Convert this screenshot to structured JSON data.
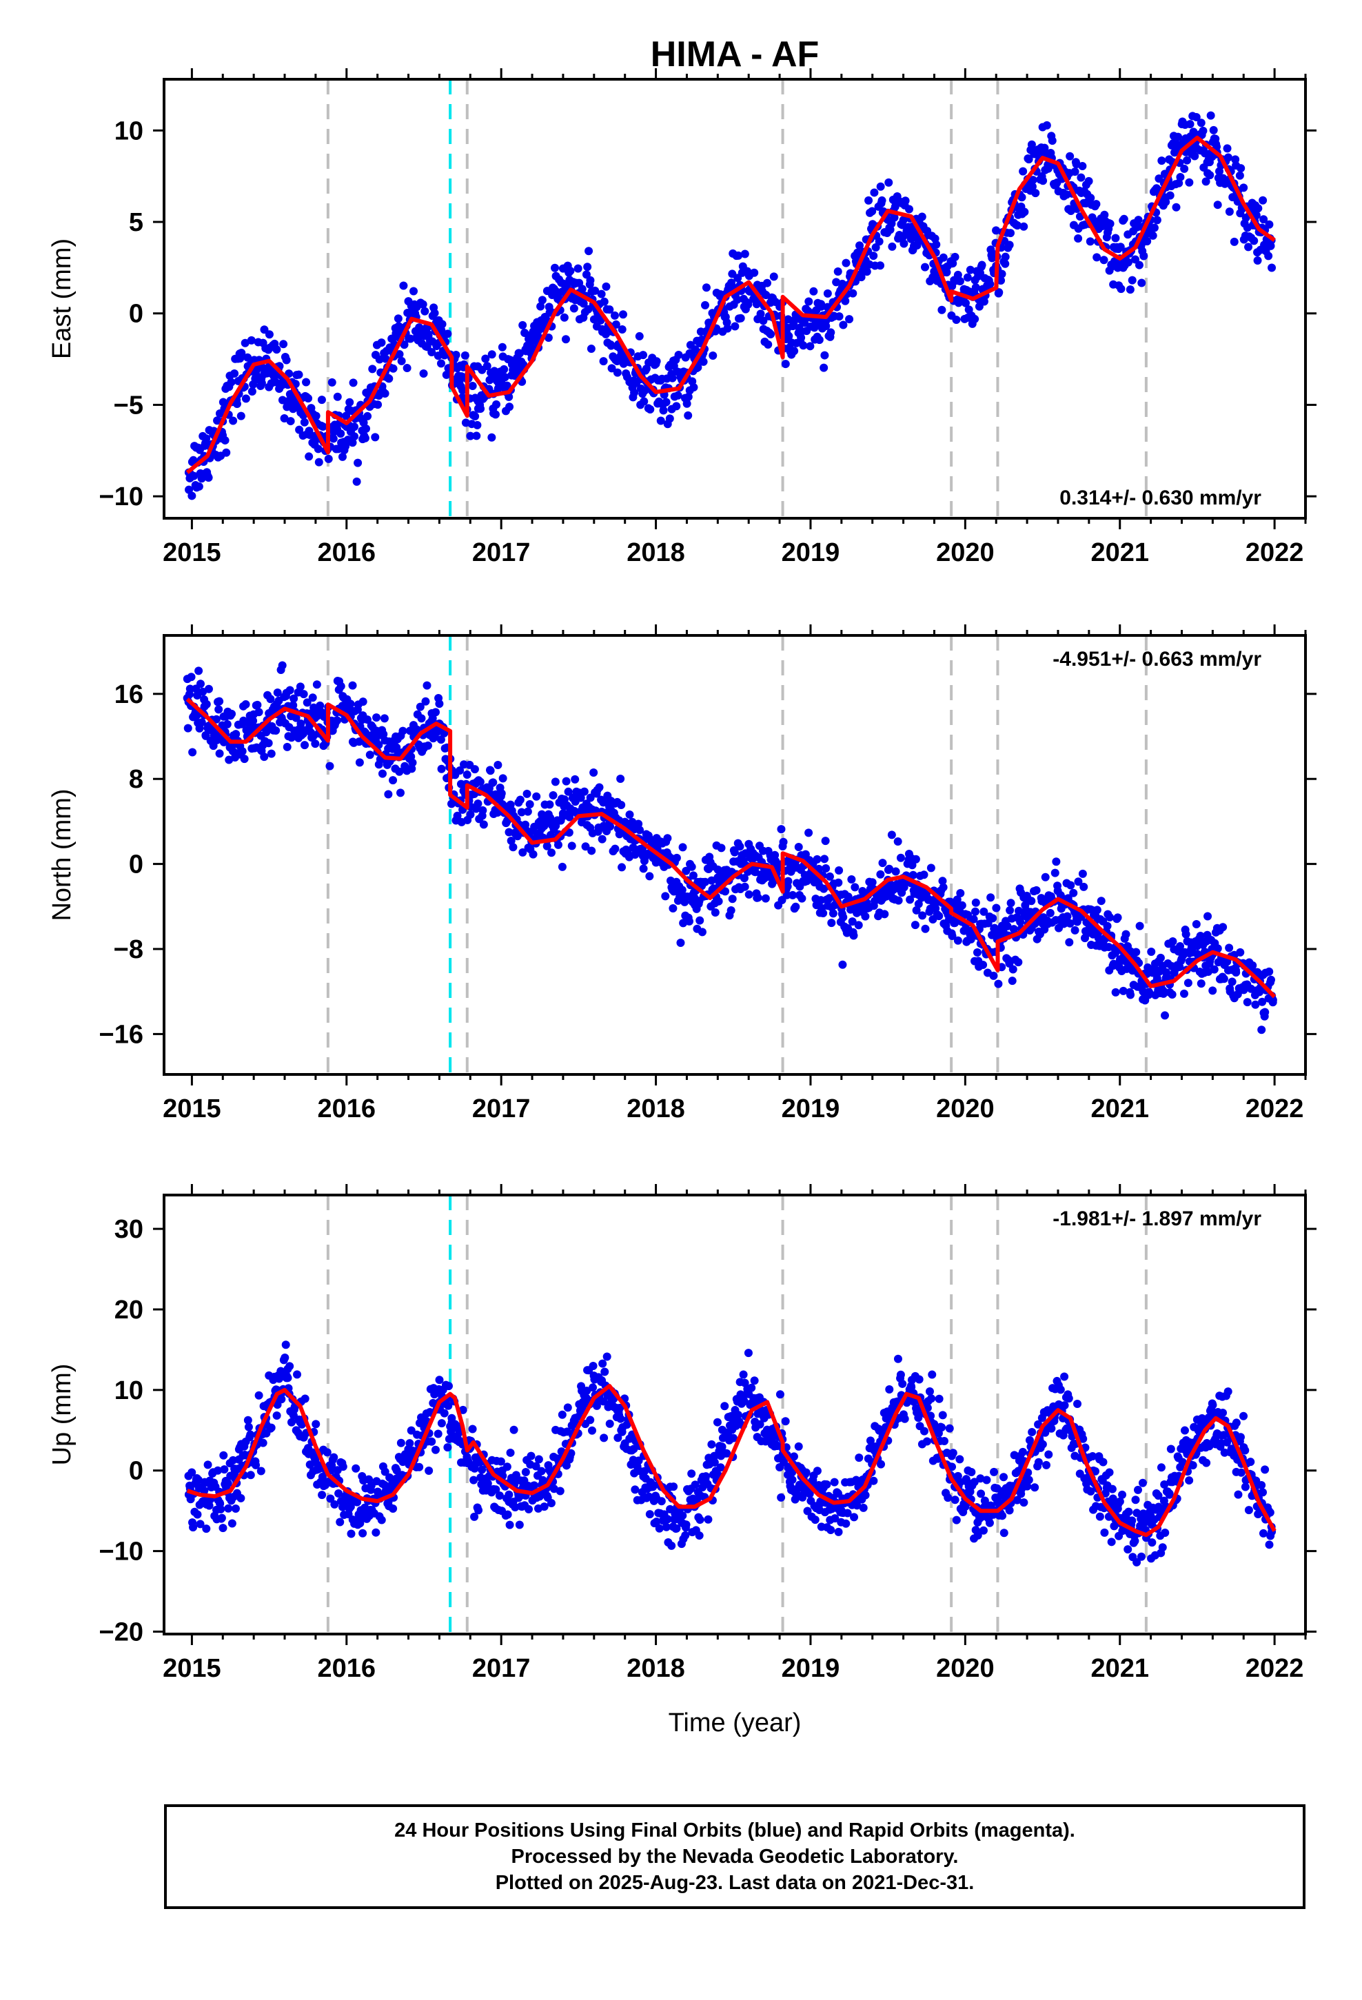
{
  "title": "HIMA - AF",
  "chart_data": [
    {
      "type": "scatter",
      "ylabel": "East (mm)",
      "xlabel": "",
      "xlim": [
        2014.82,
        2022.2
      ],
      "ylim": [
        -11.2,
        12.8
      ],
      "x_ticks": [
        2015,
        2016,
        2017,
        2018,
        2019,
        2020,
        2021,
        2022
      ],
      "y_ticks": [
        -10,
        -5,
        0,
        5,
        10
      ],
      "y_tick_labels": [
        "−10",
        "−5",
        "0",
        "5",
        "10"
      ],
      "rate_text": "0.314+/- 0.630 mm/yr",
      "rate_position": "bottom-right",
      "series": [
        {
          "kind": "points",
          "color": "#0000ee",
          "x": [
            2014.98,
            2015.08,
            2015.2,
            2015.3,
            2015.42,
            2015.5,
            2015.62,
            2015.72,
            2015.85,
            2015.92,
            2016.05,
            2016.15,
            2016.25,
            2016.35,
            2016.45,
            2016.6,
            2016.75,
            2016.85,
            2016.95,
            2017.1,
            2017.25,
            2017.4,
            2017.5,
            2017.62,
            2017.75,
            2017.9,
            2018.05,
            2018.2,
            2018.35,
            2018.45,
            2018.55,
            2018.7,
            2018.85,
            2019.0,
            2019.1,
            2019.25,
            2019.4,
            2019.5,
            2019.6,
            2019.75,
            2019.9,
            2020.05,
            2020.2,
            2020.35,
            2020.45,
            2020.55,
            2020.7,
            2020.85,
            2021.0,
            2021.15,
            2021.3,
            2021.4,
            2021.5,
            2021.62,
            2021.75,
            2021.88,
            2021.98
          ],
          "y": [
            -8.7,
            -7.8,
            -5.9,
            -3.7,
            -2.7,
            -2.9,
            -3.9,
            -5.3,
            -6.8,
            -6.3,
            -6.2,
            -5.1,
            -3.2,
            -1.2,
            -0.2,
            -1.6,
            -4.2,
            -4.8,
            -4.4,
            -3.0,
            -0.6,
            1.2,
            1.1,
            0.2,
            -1.8,
            -3.6,
            -4.3,
            -3.5,
            -1.1,
            0.9,
            1.4,
            0.4,
            -1.3,
            -0.2,
            -0.4,
            1.5,
            4.5,
            5.5,
            5.1,
            3.3,
            1.1,
            0.9,
            2.6,
            5.8,
            7.9,
            8.3,
            6.9,
            4.8,
            3.0,
            3.9,
            6.9,
            8.9,
            9.5,
            8.7,
            6.8,
            4.8,
            4.0
          ]
        },
        {
          "kind": "fit",
          "color": "#ff0000",
          "x": [
            2014.97,
            2015.1,
            2015.25,
            2015.4,
            2015.5,
            2015.62,
            2015.75,
            2015.88,
            2015.88,
            2016.0,
            2016.15,
            2016.3,
            2016.42,
            2016.55,
            2016.68,
            2016.68,
            2016.78,
            2016.78,
            2016.92,
            2017.05,
            2017.2,
            2017.35,
            2017.45,
            2017.6,
            2017.75,
            2017.9,
            2018.0,
            2018.15,
            2018.3,
            2018.45,
            2018.6,
            2018.75,
            2018.82,
            2018.82,
            2018.95,
            2019.1,
            2019.25,
            2019.4,
            2019.5,
            2019.65,
            2019.8,
            2019.91,
            2019.91,
            2020.05,
            2020.2,
            2020.21,
            2020.35,
            2020.5,
            2020.6,
            2020.75,
            2020.9,
            2021.0,
            2021.1,
            2021.25,
            2021.4,
            2021.5,
            2021.65,
            2021.8,
            2021.9,
            2022.0
          ],
          "y": [
            -8.7,
            -7.8,
            -4.9,
            -2.8,
            -2.6,
            -3.6,
            -5.5,
            -7.6,
            -5.4,
            -6.0,
            -4.8,
            -2.3,
            -0.3,
            -0.6,
            -2.4,
            -4.0,
            -5.6,
            -2.9,
            -4.5,
            -4.3,
            -2.6,
            0.1,
            1.3,
            0.6,
            -1.2,
            -3.4,
            -4.3,
            -4.1,
            -2.0,
            0.9,
            1.7,
            0.0,
            -2.4,
            0.9,
            -0.1,
            -0.2,
            1.5,
            4.3,
            5.6,
            5.3,
            3.1,
            0.7,
            1.2,
            0.8,
            1.4,
            3.7,
            6.8,
            8.5,
            8.2,
            5.7,
            3.5,
            3.0,
            3.6,
            6.3,
            8.9,
            9.6,
            8.6,
            6.0,
            4.6,
            4.0
          ]
        }
      ],
      "offset_lines": [
        2015.88,
        2016.78,
        2018.82,
        2019.91,
        2020.21,
        2021.17
      ],
      "antenna_lines": [
        2016.67
      ]
    },
    {
      "type": "scatter",
      "ylabel": "North (mm)",
      "xlabel": "",
      "xlim": [
        2014.82,
        2022.2
      ],
      "ylim": [
        -19.8,
        21.5
      ],
      "x_ticks": [
        2015,
        2016,
        2017,
        2018,
        2019,
        2020,
        2021,
        2022
      ],
      "y_ticks": [
        -16,
        -8,
        0,
        8,
        16
      ],
      "y_tick_labels": [
        "−16",
        "−8",
        "0",
        "8",
        "16"
      ],
      "rate_text": "-4.951+/- 0.663 mm/yr",
      "rate_position": "top-right",
      "series": [
        {
          "kind": "points",
          "color": "#0000ee",
          "x": [
            2014.97,
            2015.08,
            2015.2,
            2015.3,
            2015.42,
            2015.55,
            2015.65,
            2015.75,
            2015.85,
            2015.95,
            2016.05,
            2016.15,
            2016.3,
            2016.42,
            2016.5,
            2016.6,
            2016.7,
            2016.8,
            2016.95,
            2017.1,
            2017.25,
            2017.4,
            2017.55,
            2017.7,
            2017.85,
            2018.0,
            2018.15,
            2018.25,
            2018.4,
            2018.55,
            2018.65,
            2018.78,
            2018.9,
            2019.05,
            2019.2,
            2019.35,
            2019.5,
            2019.65,
            2019.8,
            2019.95,
            2020.1,
            2020.25,
            2020.4,
            2020.55,
            2020.7,
            2020.85,
            2021.0,
            2021.15,
            2021.3,
            2021.45,
            2021.6,
            2021.75,
            2021.9,
            2021.99
          ],
          "y": [
            15.6,
            14.0,
            12.0,
            11.3,
            12.8,
            14.5,
            14.8,
            13.5,
            12.0,
            14.6,
            13.2,
            11.8,
            10.0,
            10.8,
            12.8,
            13.2,
            6.0,
            6.5,
            6.5,
            3.9,
            2.3,
            4.5,
            4.8,
            3.8,
            2.3,
            1.2,
            -2.1,
            -3.2,
            -1.5,
            0.0,
            -0.2,
            -0.9,
            0.0,
            -1.4,
            -4.2,
            -3.5,
            -1.5,
            -1.8,
            -3.5,
            -4.8,
            -7.5,
            -7.0,
            -5.0,
            -3.4,
            -4.2,
            -6.3,
            -8.0,
            -12.0,
            -10.2,
            -8.4,
            -8.5,
            -10.0,
            -11.8,
            -12.8
          ]
        },
        {
          "kind": "fit",
          "color": "#ff0000",
          "x": [
            2014.97,
            2015.1,
            2015.25,
            2015.35,
            2015.5,
            2015.6,
            2015.75,
            2015.88,
            2015.88,
            2016.0,
            2016.1,
            2016.25,
            2016.35,
            2016.48,
            2016.58,
            2016.67,
            2016.67,
            2016.78,
            2016.78,
            2016.9,
            2017.05,
            2017.2,
            2017.35,
            2017.5,
            2017.65,
            2017.8,
            2017.95,
            2018.1,
            2018.2,
            2018.35,
            2018.5,
            2018.62,
            2018.75,
            2018.82,
            2018.82,
            2018.95,
            2019.1,
            2019.2,
            2019.35,
            2019.5,
            2019.6,
            2019.75,
            2019.91,
            2019.91,
            2020.05,
            2020.21,
            2020.21,
            2020.35,
            2020.5,
            2020.6,
            2020.75,
            2020.9,
            2021.0,
            2021.1,
            2021.2,
            2021.35,
            2021.5,
            2021.6,
            2021.75,
            2021.9,
            2022.0
          ],
          "y": [
            15.5,
            13.8,
            11.5,
            11.5,
            13.6,
            14.6,
            13.9,
            11.6,
            15.0,
            14.0,
            12.0,
            10.0,
            9.9,
            12.3,
            13.2,
            12.5,
            6.5,
            5.3,
            7.4,
            6.5,
            4.5,
            2.0,
            2.3,
            4.5,
            4.7,
            3.3,
            1.6,
            0.0,
            -1.5,
            -3.2,
            -1.2,
            0.0,
            -0.3,
            -2.6,
            1.0,
            0.3,
            -1.7,
            -4.0,
            -3.3,
            -1.5,
            -1.2,
            -2.2,
            -4.2,
            -4.6,
            -5.8,
            -10.0,
            -7.3,
            -6.5,
            -4.3,
            -3.3,
            -4.4,
            -6.5,
            -7.8,
            -9.5,
            -11.5,
            -11.0,
            -9.1,
            -8.3,
            -9.0,
            -11.0,
            -12.5
          ]
        }
      ],
      "offset_lines": [
        2015.88,
        2016.78,
        2018.82,
        2019.91,
        2020.21,
        2021.17
      ],
      "antenna_lines": [
        2016.67
      ]
    },
    {
      "type": "scatter",
      "ylabel": "Up (mm)",
      "xlabel": "Time (year)",
      "xlim": [
        2014.82,
        2022.2
      ],
      "ylim": [
        -20.3,
        34.2
      ],
      "x_ticks": [
        2015,
        2016,
        2017,
        2018,
        2019,
        2020,
        2021,
        2022
      ],
      "y_ticks": [
        -20,
        -10,
        0,
        10,
        20,
        30
      ],
      "y_tick_labels": [
        "−20",
        "−10",
        "0",
        "10",
        "20",
        "30"
      ],
      "rate_text": "-1.981+/- 1.897 mm/yr",
      "rate_position": "top-right",
      "series": [
        {
          "kind": "points",
          "color": "#0000ee",
          "x": [
            2014.98,
            2015.08,
            2015.18,
            2015.28,
            2015.38,
            2015.48,
            2015.55,
            2015.62,
            2015.7,
            2015.8,
            2015.9,
            2016.0,
            2016.1,
            2016.2,
            2016.3,
            2016.42,
            2016.52,
            2016.6,
            2016.68,
            2016.78,
            2016.9,
            2017.05,
            2017.2,
            2017.32,
            2017.45,
            2017.55,
            2017.65,
            2017.75,
            2017.88,
            2018.0,
            2018.12,
            2018.25,
            2018.38,
            2018.5,
            2018.6,
            2018.7,
            2018.82,
            2018.95,
            2019.1,
            2019.2,
            2019.32,
            2019.45,
            2019.55,
            2019.65,
            2019.78,
            2019.9,
            2020.0,
            2020.12,
            2020.22,
            2020.35,
            2020.48,
            2020.58,
            2020.68,
            2020.8,
            2020.95,
            2021.05,
            2021.2,
            2021.32,
            2021.45,
            2021.55,
            2021.65,
            2021.75,
            2021.88,
            2021.98
          ],
          "y": [
            -3.0,
            -2.5,
            -4.0,
            -1.0,
            2.0,
            6.5,
            10.0,
            11.5,
            6.0,
            1.0,
            -1.5,
            -3.5,
            -5.0,
            -3.5,
            -2.0,
            2.0,
            6.0,
            8.5,
            6.5,
            1.5,
            -1.0,
            -3.0,
            -2.0,
            -1.0,
            3.5,
            9.0,
            11.0,
            7.5,
            0.5,
            -3.5,
            -6.0,
            -4.5,
            1.0,
            6.0,
            9.5,
            6.5,
            2.0,
            -2.0,
            -4.0,
            -5.0,
            -3.0,
            3.0,
            8.5,
            10.5,
            6.0,
            0.5,
            -3.5,
            -5.5,
            -4.0,
            -1.5,
            4.0,
            7.5,
            5.5,
            0.0,
            -5.0,
            -7.5,
            -6.5,
            -3.0,
            2.5,
            5.5,
            6.5,
            3.5,
            -3.0,
            -7.0
          ]
        },
        {
          "kind": "fit",
          "color": "#ff0000",
          "x": [
            2014.97,
            2015.05,
            2015.15,
            2015.25,
            2015.35,
            2015.45,
            2015.55,
            2015.6,
            2015.7,
            2015.8,
            2015.88,
            2016.0,
            2016.1,
            2016.2,
            2016.3,
            2016.4,
            2016.5,
            2016.6,
            2016.67,
            2016.7,
            2016.75,
            2016.78,
            2016.82,
            2016.95,
            2017.1,
            2017.2,
            2017.3,
            2017.4,
            2017.5,
            2017.6,
            2017.7,
            2017.8,
            2017.92,
            2018.05,
            2018.15,
            2018.25,
            2018.35,
            2018.45,
            2018.55,
            2018.62,
            2018.72,
            2018.82,
            2018.82,
            2018.95,
            2019.05,
            2019.15,
            2019.25,
            2019.35,
            2019.45,
            2019.55,
            2019.62,
            2019.7,
            2019.8,
            2019.91,
            2020.0,
            2020.1,
            2020.21,
            2020.3,
            2020.4,
            2020.5,
            2020.6,
            2020.68,
            2020.78,
            2020.9,
            2021.0,
            2021.1,
            2021.17,
            2021.25,
            2021.35,
            2021.45,
            2021.55,
            2021.62,
            2021.7,
            2021.8,
            2021.9,
            2022.0
          ],
          "y": [
            -2.5,
            -3.0,
            -3.2,
            -2.5,
            0.5,
            5.5,
            9.5,
            10.0,
            8.0,
            3.0,
            -0.5,
            -2.5,
            -3.5,
            -3.8,
            -3.0,
            -0.5,
            4.0,
            8.5,
            9.5,
            9.0,
            5.5,
            2.5,
            3.5,
            -0.5,
            -2.5,
            -2.8,
            -1.8,
            1.5,
            5.5,
            9.0,
            10.5,
            8.0,
            2.5,
            -2.5,
            -4.5,
            -4.5,
            -3.5,
            0.0,
            4.5,
            7.5,
            8.5,
            3.5,
            2.5,
            -1.0,
            -3.0,
            -4.0,
            -3.8,
            -2.0,
            2.5,
            7.0,
            9.5,
            9.0,
            4.0,
            -1.0,
            -3.5,
            -5.0,
            -5.0,
            -3.5,
            1.0,
            5.5,
            7.5,
            6.5,
            1.0,
            -4.0,
            -6.5,
            -7.5,
            -8.0,
            -7.0,
            -3.5,
            1.5,
            5.0,
            6.5,
            5.5,
            1.0,
            -4.0,
            -7.5
          ]
        }
      ],
      "offset_lines": [
        2015.88,
        2016.78,
        2018.82,
        2019.91,
        2020.21,
        2021.17
      ],
      "antenna_lines": [
        2016.67
      ]
    }
  ],
  "footer": {
    "line1": "24 Hour Positions Using Final Orbits (blue) and Rapid Orbits (magenta).",
    "line2": "Processed by the Nevada Geodetic Laboratory.",
    "line3": "Plotted on 2025-Aug-23. Last data on 2021-Dec-31."
  },
  "colors": {
    "points": "#0000ee",
    "fit": "#ff0000",
    "offset_lines": "#bfbfbf",
    "antenna_lines": "#00e5ee"
  }
}
